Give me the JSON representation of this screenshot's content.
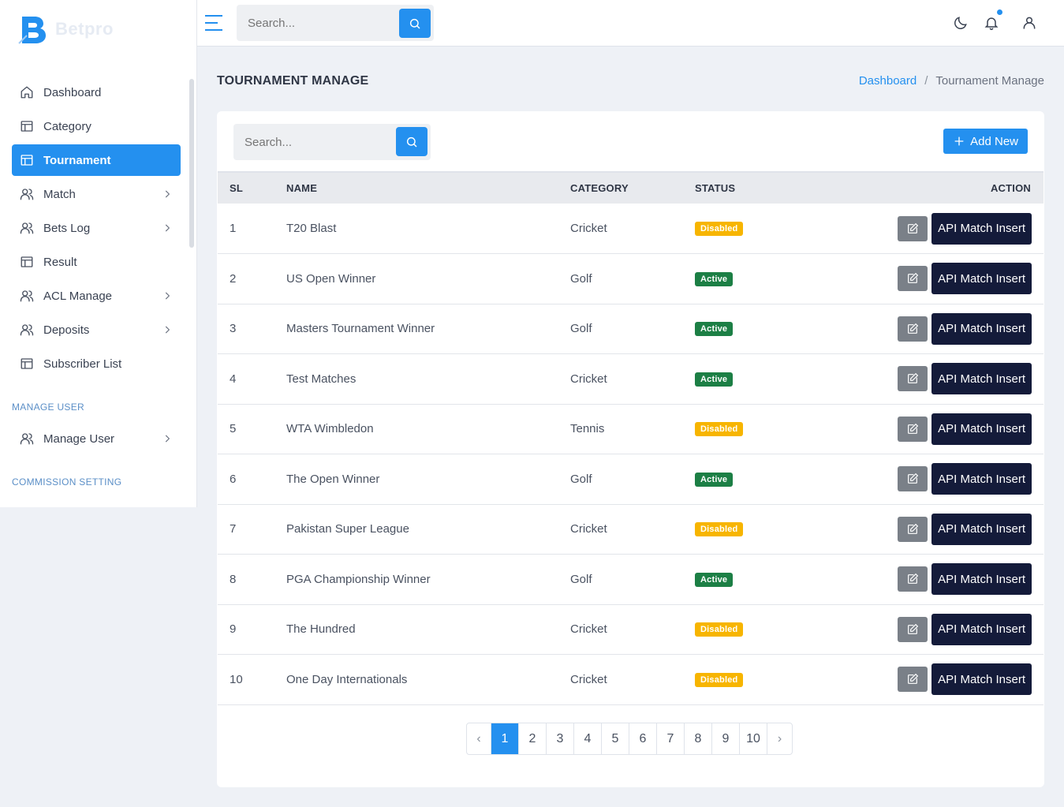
{
  "brand": {
    "name": "Betpro"
  },
  "sidebar": {
    "items": [
      {
        "label": "Dashboard",
        "icon": "home-icon",
        "active": false,
        "has_children": false
      },
      {
        "label": "Category",
        "icon": "layout-icon",
        "active": false,
        "has_children": false
      },
      {
        "label": "Tournament",
        "icon": "layout-icon",
        "active": true,
        "has_children": false
      },
      {
        "label": "Match",
        "icon": "users-icon",
        "active": false,
        "has_children": true
      },
      {
        "label": "Bets Log",
        "icon": "users-icon",
        "active": false,
        "has_children": true
      },
      {
        "label": "Result",
        "icon": "layout-icon",
        "active": false,
        "has_children": false
      },
      {
        "label": "ACL Manage",
        "icon": "users-icon",
        "active": false,
        "has_children": true
      },
      {
        "label": "Deposits",
        "icon": "users-icon",
        "active": false,
        "has_children": true
      },
      {
        "label": "Subscriber List",
        "icon": "layout-icon",
        "active": false,
        "has_children": false
      }
    ],
    "section_manage_user": "MANAGE USER",
    "manage_user_item": {
      "label": "Manage User",
      "icon": "users-icon",
      "has_children": true
    },
    "section_commission": "COMMISSION SETTING"
  },
  "topbar": {
    "search_placeholder": "Search..."
  },
  "page": {
    "title": "TOURNAMENT MANAGE",
    "breadcrumb": {
      "home": "Dashboard",
      "separator": "/",
      "current": "Tournament Manage"
    }
  },
  "card": {
    "search_placeholder": "Search...",
    "add_button": "Add New"
  },
  "table": {
    "headers": {
      "sl": "SL",
      "name": "NAME",
      "category": "CATEGORY",
      "status": "STATUS",
      "action": "ACTION"
    },
    "action_label": "API Match Insert",
    "rows": [
      {
        "sl": "1",
        "name": "T20 Blast",
        "category": "Cricket",
        "status": "Disabled"
      },
      {
        "sl": "2",
        "name": "US Open Winner",
        "category": "Golf",
        "status": "Active"
      },
      {
        "sl": "3",
        "name": "Masters Tournament Winner",
        "category": "Golf",
        "status": "Active"
      },
      {
        "sl": "4",
        "name": "Test Matches",
        "category": "Cricket",
        "status": "Active"
      },
      {
        "sl": "5",
        "name": "WTA Wimbledon",
        "category": "Tennis",
        "status": "Disabled"
      },
      {
        "sl": "6",
        "name": "The Open Winner",
        "category": "Golf",
        "status": "Active"
      },
      {
        "sl": "7",
        "name": "Pakistan Super League",
        "category": "Cricket",
        "status": "Disabled"
      },
      {
        "sl": "8",
        "name": "PGA Championship Winner",
        "category": "Golf",
        "status": "Active"
      },
      {
        "sl": "9",
        "name": "The Hundred",
        "category": "Cricket",
        "status": "Disabled"
      },
      {
        "sl": "10",
        "name": "One Day Internationals",
        "category": "Cricket",
        "status": "Disabled"
      }
    ]
  },
  "pagination": {
    "prev": "‹",
    "next": "›",
    "pages": [
      "1",
      "2",
      "3",
      "4",
      "5",
      "6",
      "7",
      "8",
      "9",
      "10"
    ],
    "current": "1"
  },
  "colors": {
    "primary": "#2490ef",
    "disabled_badge": "#f7b500",
    "active_badge": "#1c7f45",
    "api_button": "#141b3a",
    "edit_button": "#7a8088"
  }
}
